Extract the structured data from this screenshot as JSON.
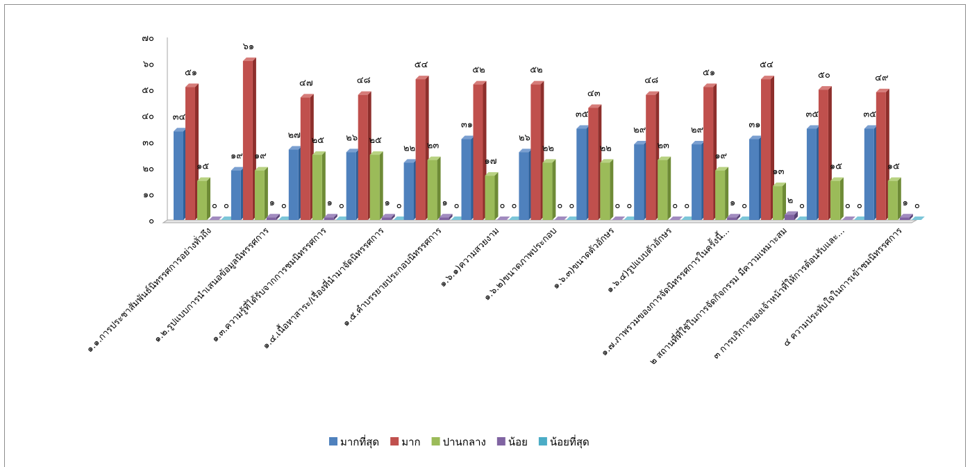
{
  "chart_data": {
    "type": "bar",
    "title": "",
    "xlabel": "",
    "ylabel": "",
    "ylim": [
      0,
      70
    ],
    "yticks": [
      0,
      10,
      20,
      30,
      40,
      50,
      60,
      70
    ],
    "ytick_labels": [
      "๐",
      "๑๐",
      "๒๐",
      "๓๐",
      "๔๐",
      "๕๐",
      "๖๐",
      "๗๐"
    ],
    "legend_position": "bottom",
    "grid": false,
    "categories": [
      "๑.๑.การประชาสัมพันธ์นิทรรศการอย่างทั่วถึง",
      "๑.๒.รูปแบบการนำเสนอข้อมูลนิทรรศการ",
      "๑.๓.ความรู้ที่ได้รับจากการชมนิทรรศการ",
      "๑.๔.เนื้อหาสาระ/เรื่องที่นำมาจัดนิทรรศการ",
      "๑.๕.คำบรรยายประกอบนิทรรศการ",
      "๑.๖.๑)ความสวยงาม",
      "๑.๖.๒)ขนาดภาพประกอบ",
      "๑.๖.๓)ขนาดตัวอักษร",
      "๑.๖.๔)รูปแบบตัวอักษร",
      "๑.๗.ภาพรวมของการจัดนิทรรศการในครั้งนี้...",
      "๒ สถานที่ที่ใช้ในการจัดกิจกรรม มีความเหมาะสม",
      "๓ การบริการของเจ้าหน้าที่ให้การต้อนรับและ...",
      "๔ ความประทับใจในการเข้าชมนิทรรศการ"
    ],
    "series": [
      {
        "name": "มากที่สุด",
        "color": "#4f81bd",
        "side": "#2f5f98",
        "top": "#7a9fd0",
        "values": [
          34,
          19,
          27,
          26,
          22,
          31,
          26,
          35,
          29,
          29,
          31,
          35,
          35
        ],
        "labels": [
          "๓๔",
          "๑๙",
          "๒๗",
          "๒๖",
          "๒๒",
          "๓๑",
          "๒๖",
          "๓๕",
          "๒๙",
          "๒๙",
          "๓๑",
          "๓๕",
          "๓๕"
        ]
      },
      {
        "name": "มาก",
        "color": "#c0504d",
        "side": "#8e2f2c",
        "top": "#d67c79",
        "values": [
          51,
          61,
          47,
          48,
          54,
          52,
          52,
          43,
          48,
          51,
          54,
          50,
          49
        ],
        "labels": [
          "๕๑",
          "๖๑",
          "๔๗",
          "๔๘",
          "๕๔",
          "๕๒",
          "๕๒",
          "๔๓",
          "๔๘",
          "๕๑",
          "๕๔",
          "๕๐",
          "๔๙"
        ]
      },
      {
        "name": "ปานกลาง",
        "color": "#9bbb59",
        "side": "#6e8b36",
        "top": "#b8d282",
        "values": [
          15,
          19,
          25,
          25,
          23,
          17,
          22,
          22,
          23,
          19,
          13,
          15,
          15
        ],
        "labels": [
          "๑๕",
          "๑๙",
          "๒๕",
          "๒๕",
          "๒๓",
          "๑๗",
          "๒๒",
          "๒๒",
          "๒๓",
          "๑๙",
          "๑๓",
          "๑๕",
          "๑๕"
        ]
      },
      {
        "name": "น้อย",
        "color": "#8064a2",
        "side": "#594377",
        "top": "#a18bbf",
        "values": [
          0,
          1,
          1,
          1,
          1,
          0,
          0,
          0,
          0,
          1,
          2,
          0,
          1
        ],
        "labels": [
          "๐",
          "๑",
          "๑",
          "๑",
          "๑",
          "๐",
          "๐",
          "๐",
          "๐",
          "๑",
          "๒",
          "๐",
          "๑"
        ]
      },
      {
        "name": "น้อยที่สุด",
        "color": "#4bacc6",
        "side": "#2d7f96",
        "top": "#7cc6d9",
        "values": [
          0,
          0,
          0,
          0,
          0,
          0,
          0,
          0,
          0,
          0,
          0,
          0,
          0
        ],
        "labels": [
          "๐",
          "๐",
          "๐",
          "๐",
          "๐",
          "๐",
          "๐",
          "๐",
          "๐",
          "๐",
          "๐",
          "๐",
          "๐"
        ]
      }
    ]
  }
}
